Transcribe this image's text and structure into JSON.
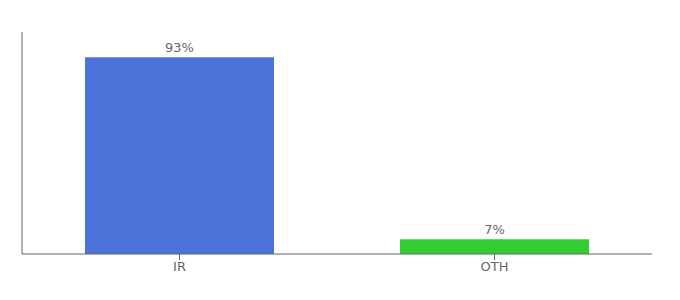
{
  "chart_data": {
    "type": "bar",
    "categories": [
      "IR",
      "OTH"
    ],
    "values": [
      93,
      7
    ],
    "value_labels": [
      "93%",
      "7%"
    ],
    "colors": [
      "#4a72d9",
      "#33cc33"
    ],
    "ylim": [
      0,
      105
    ],
    "data_labels": true,
    "tick_labels": "x"
  }
}
